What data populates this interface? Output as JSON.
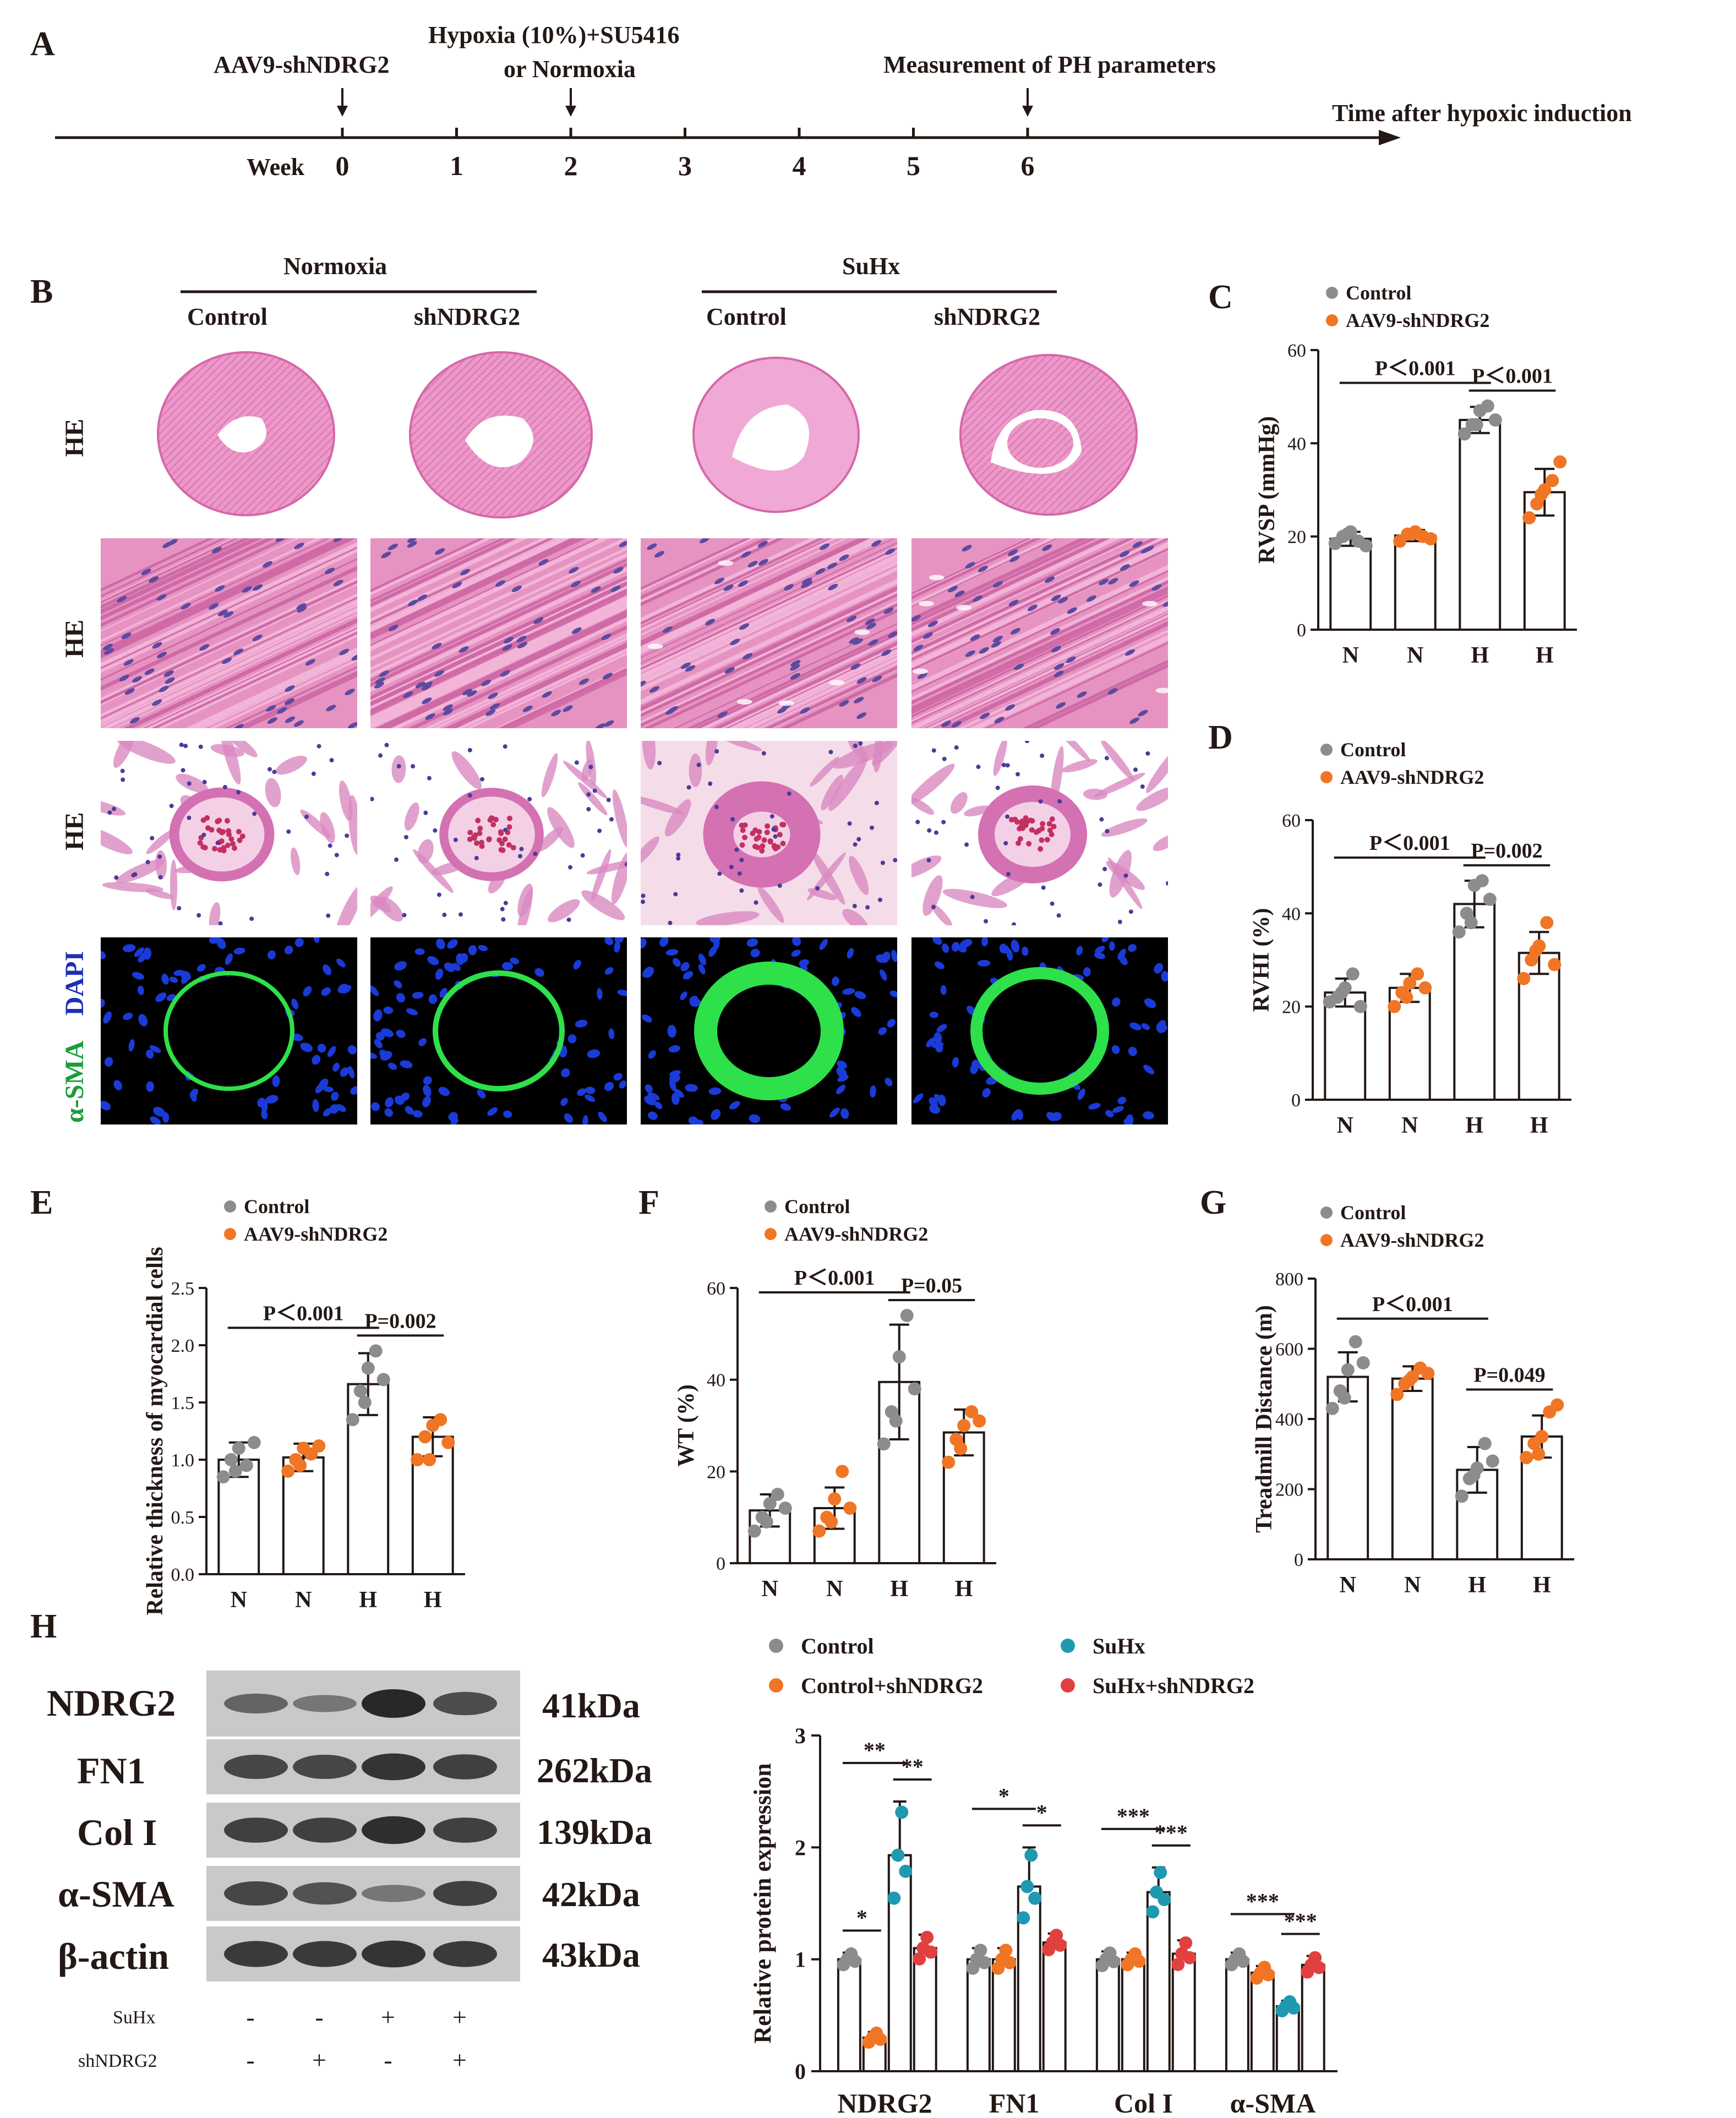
{
  "colors": {
    "control": "#8c8c8c",
    "shndrg2": "#f07524",
    "suhx": "#1f99b0",
    "suhx_shndrg2": "#e0413f",
    "he_pink": "#e58fc4",
    "nucleus_blue": "#1b3bd8",
    "sma_green": "#2ecc3a"
  },
  "panelA": {
    "letter": "A",
    "events": [
      {
        "label": "AAV9-shNDRG2",
        "week": 0
      },
      {
        "label": "Hypoxia (10%)+SU5416",
        "label2": "or Normoxia",
        "week": 2
      },
      {
        "label": "Measurement of PH parameters",
        "week": 6
      }
    ],
    "axis_title": "Time after hypoxic induction",
    "week_label": "Week",
    "ticks": [
      "0",
      "1",
      "2",
      "3",
      "4",
      "5",
      "6"
    ]
  },
  "panelB": {
    "letter": "B",
    "group1": "Normoxia",
    "group2": "SuHx",
    "columns": [
      "Control",
      "shNDRG2",
      "Control",
      "shNDRG2"
    ],
    "rows": [
      "HE",
      "HE",
      "HE"
    ],
    "if_label_green": "α-SMA",
    "if_label_blue": "DAPI"
  },
  "legend": {
    "control": "Control",
    "treated": "AAV9-shNDRG2"
  },
  "chart_data": [
    {
      "panel": "C",
      "type": "bar",
      "ylabel": "RVSP (mmHg)",
      "categories": [
        "N",
        "N",
        "H",
        "H"
      ],
      "ylim": [
        0,
        60
      ],
      "yticks": [
        "0",
        "20",
        "40",
        "60"
      ],
      "means": [
        19.5,
        20.2,
        45,
        29.5
      ],
      "sd": [
        1.5,
        1.2,
        2.8,
        5
      ],
      "points": [
        [
          18.5,
          20,
          21,
          19,
          18,
          20.5
        ],
        [
          19,
          20.5,
          21,
          20,
          19.5,
          20.5
        ],
        [
          42,
          44,
          47,
          48,
          45,
          44
        ],
        [
          24,
          27,
          30,
          32,
          36,
          29
        ]
      ],
      "comparisons": [
        {
          "text": "P＜0.001",
          "from": 0,
          "to": 2
        },
        {
          "text": "P＜0.001",
          "from": 2,
          "to": 3
        }
      ]
    },
    {
      "panel": "D",
      "type": "bar",
      "ylabel": "RVHI (%)",
      "categories": [
        "N",
        "N",
        "H",
        "H"
      ],
      "ylim": [
        0,
        60
      ],
      "yticks": [
        "0",
        "20",
        "40",
        "60"
      ],
      "means": [
        23,
        24,
        42,
        31.5
      ],
      "sd": [
        3,
        3,
        5,
        4.5
      ],
      "points": [
        [
          21,
          22,
          24,
          27,
          20,
          23
        ],
        [
          20,
          23,
          25,
          27,
          24,
          22
        ],
        [
          36,
          40,
          46,
          47,
          43,
          38
        ],
        [
          26,
          30,
          33,
          38,
          29,
          32
        ]
      ],
      "comparisons": [
        {
          "text": "P＜0.001",
          "from": 0,
          "to": 2
        },
        {
          "text": "P=0.002",
          "from": 2,
          "to": 3
        }
      ]
    },
    {
      "panel": "E",
      "type": "bar",
      "ylabel": "Relative thickness of myocardial cells",
      "categories": [
        "N",
        "N",
        "H",
        "H"
      ],
      "ylim": [
        0,
        2.5
      ],
      "yticks": [
        "0.0",
        "0.5",
        "1.0",
        "1.5",
        "2.0",
        "2.5"
      ],
      "means": [
        1.0,
        1.02,
        1.66,
        1.2
      ],
      "sd": [
        0.15,
        0.12,
        0.27,
        0.17
      ],
      "points": [
        [
          0.85,
          1.0,
          1.1,
          0.95,
          1.15,
          0.9
        ],
        [
          0.9,
          1.0,
          1.1,
          1.05,
          1.12,
          0.95
        ],
        [
          1.35,
          1.6,
          1.8,
          1.95,
          1.7,
          1.5
        ],
        [
          1.0,
          1.2,
          1.3,
          1.35,
          1.15,
          1.0
        ]
      ],
      "comparisons": [
        {
          "text": "P＜0.001",
          "from": 0,
          "to": 2
        },
        {
          "text": "P=0.002",
          "from": 2,
          "to": 3
        }
      ]
    },
    {
      "panel": "F",
      "type": "bar",
      "ylabel": "WT (%)",
      "categories": [
        "N",
        "N",
        "H",
        "H"
      ],
      "ylim": [
        0,
        60
      ],
      "yticks": [
        "0",
        "20",
        "40",
        "60"
      ],
      "means": [
        11.5,
        12,
        39.5,
        28.5
      ],
      "sd": [
        3.5,
        4.5,
        12.5,
        5
      ],
      "points": [
        [
          7,
          10,
          13,
          15,
          12,
          9
        ],
        [
          7,
          10,
          14,
          20,
          12,
          9
        ],
        [
          26,
          33,
          45,
          54,
          38,
          31
        ],
        [
          22,
          27,
          30,
          33,
          31,
          25
        ]
      ],
      "comparisons": [
        {
          "text": "P＜0.001",
          "from": 0,
          "to": 2
        },
        {
          "text": "P=0.05",
          "from": 2,
          "to": 3
        }
      ]
    },
    {
      "panel": "G",
      "type": "bar",
      "ylabel": "Treadmill Distance (m)",
      "categories": [
        "N",
        "N",
        "H",
        "H"
      ],
      "ylim": [
        0,
        800
      ],
      "yticks": [
        "0",
        "200",
        "400",
        "600",
        "800"
      ],
      "means": [
        520,
        515,
        255,
        350
      ],
      "sd": [
        70,
        35,
        65,
        60
      ],
      "points": [
        [
          430,
          480,
          540,
          620,
          560,
          460
        ],
        [
          470,
          500,
          520,
          545,
          530,
          510
        ],
        [
          180,
          230,
          260,
          330,
          280,
          240
        ],
        [
          290,
          330,
          350,
          420,
          440,
          300
        ]
      ],
      "comparisons": [
        {
          "text": "P＜0.001",
          "from": 0,
          "to": 2
        },
        {
          "text": "P=0.049",
          "from": 2,
          "to": 3
        }
      ]
    },
    {
      "panel": "H",
      "type": "bar",
      "ylabel": "Relative protein expression",
      "categories": [
        "NDRG2",
        "FN1",
        "Col I",
        "α-SMA"
      ],
      "series": [
        {
          "name": "Control",
          "means": [
            1.0,
            1.0,
            1.0,
            1.0
          ],
          "sd": [
            0.06,
            0.1,
            0.07,
            0.06
          ]
        },
        {
          "name": "Control+shNDRG2",
          "means": [
            0.3,
            1.0,
            1.0,
            0.88
          ],
          "sd": [
            0.05,
            0.1,
            0.06,
            0.06
          ]
        },
        {
          "name": "SuHx",
          "means": [
            1.93,
            1.65,
            1.6,
            0.58
          ],
          "sd": [
            0.48,
            0.35,
            0.22,
            0.05
          ]
        },
        {
          "name": "SuHx+shNDRG2",
          "means": [
            1.1,
            1.15,
            1.05,
            0.95
          ],
          "sd": [
            0.12,
            0.08,
            0.12,
            0.08
          ]
        }
      ],
      "ylim": [
        0,
        3
      ],
      "yticks": [
        "0",
        "1",
        "2",
        "3"
      ],
      "sig": [
        {
          "text": "*",
          "group": 0,
          "from": 0,
          "to": 1
        },
        {
          "text": "**",
          "group": 0,
          "from": 0,
          "to": 2
        },
        {
          "text": "**",
          "group": 0,
          "from": 2,
          "to": 3
        },
        {
          "text": "*",
          "group": 1,
          "from": 0,
          "to": 2
        },
        {
          "text": "*",
          "group": 1,
          "from": 2,
          "to": 3
        },
        {
          "text": "***",
          "group": 2,
          "from": 0,
          "to": 2
        },
        {
          "text": "***",
          "group": 2,
          "from": 2,
          "to": 3
        },
        {
          "text": "***",
          "group": 3,
          "from": 0,
          "to": 2
        },
        {
          "text": "***",
          "group": 3,
          "from": 2,
          "to": 3
        }
      ]
    }
  ],
  "panelH_legend": [
    "Control",
    "Control+shNDRG2",
    "SuHx",
    "SuHx+shNDRG2"
  ],
  "western": {
    "letter": "H",
    "proteins": [
      "NDRG2",
      "FN1",
      "Col I",
      "α-SMA",
      "β-actin"
    ],
    "sizes": [
      "41kDa",
      "262kDa",
      "139kDa",
      "42kDa",
      "43kDa"
    ],
    "row_suhx": "SuHx",
    "row_sh": "shNDRG2",
    "suhx_signs": [
      "-",
      "-",
      "+",
      "+"
    ],
    "sh_signs": [
      "-",
      "+",
      "-",
      "+"
    ]
  }
}
